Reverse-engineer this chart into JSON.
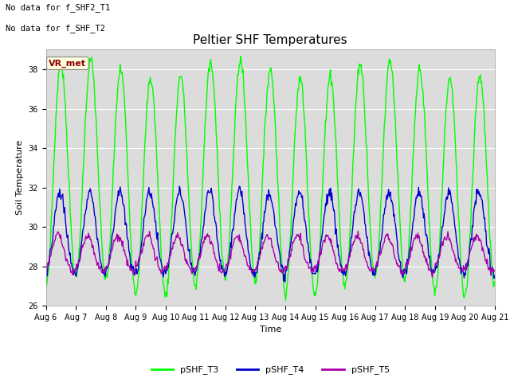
{
  "title": "Peltier SHF Temperatures",
  "xlabel": "Time",
  "ylabel": "Soil Temperature",
  "no_data_text": [
    "No data for f_SHF2_T1",
    "No data for f_SHF_T2"
  ],
  "vr_met_label": "VR_met",
  "ylim": [
    26,
    39
  ],
  "yticks": [
    26,
    28,
    30,
    32,
    34,
    36,
    38
  ],
  "legend_labels": [
    "pSHF_T3",
    "pSHF_T4",
    "pSHF_T5"
  ],
  "colors": {
    "pSHF_T3": "#00ff00",
    "pSHF_T4": "#0000cc",
    "pSHF_T5": "#aa00aa"
  },
  "background_color": "#dcdcdc",
  "fig_bg": "#ffffff",
  "title_fontsize": 11,
  "axis_label_fontsize": 8,
  "tick_fontsize": 7,
  "legend_fontsize": 8,
  "no_data_fontsize": 7.5,
  "vr_met_fontsize": 8,
  "n_days": 15,
  "points_per_day": 48,
  "start_day": 6,
  "linewidth_t3": 1.0,
  "linewidth_t4": 1.0,
  "linewidth_t5": 1.0
}
